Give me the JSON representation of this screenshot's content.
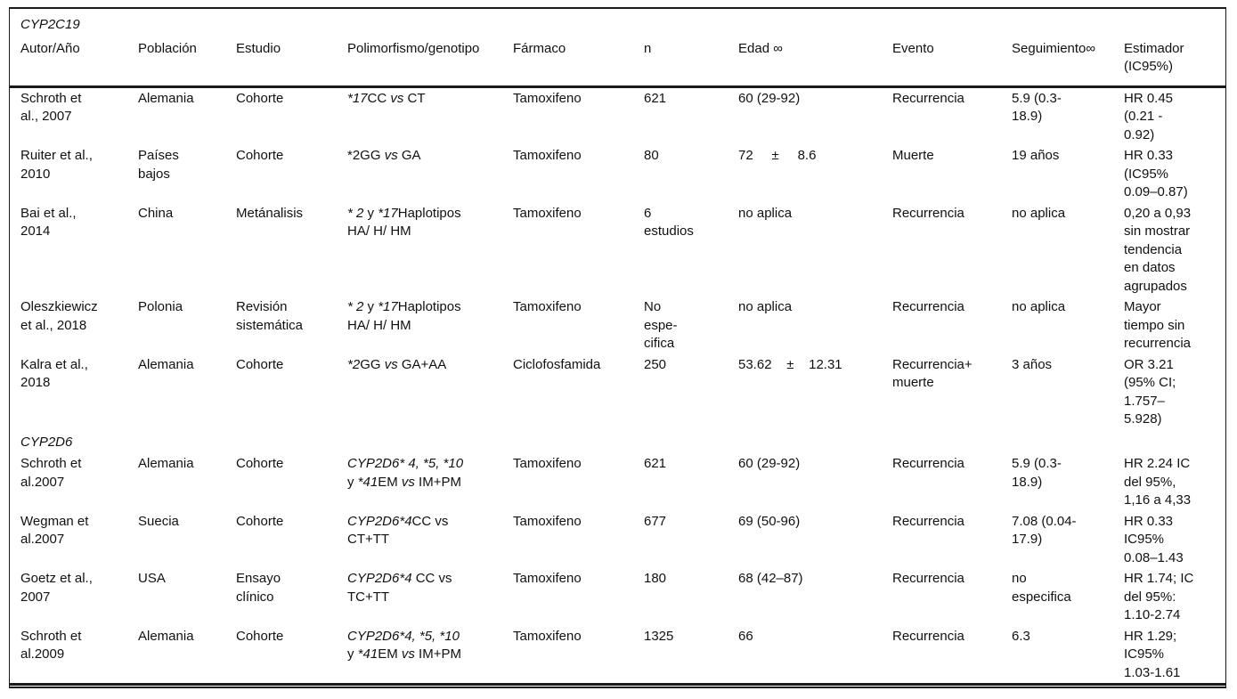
{
  "table": {
    "columns": [
      {
        "key": "autor",
        "label": "Autor/Año"
      },
      {
        "key": "poblacion",
        "label": "Población"
      },
      {
        "key": "estudio",
        "label": "Estudio"
      },
      {
        "key": "polimorfismo",
        "label": "Polimorfismo/genotipo"
      },
      {
        "key": "farmaco",
        "label": "Fármaco"
      },
      {
        "key": "n",
        "label": "n"
      },
      {
        "key": "edad",
        "label": "Edad ∞"
      },
      {
        "key": "evento",
        "label": "Evento"
      },
      {
        "key": "seguimiento",
        "label": "Seguimiento∞"
      },
      {
        "key": "estimador",
        "label": "Estimador\n(IC95%)"
      }
    ],
    "sections": [
      {
        "label": "CYP2C19",
        "rows": [
          {
            "autor": "Schroth et\nal., 2007",
            "poblacion": "Alemania",
            "estudio": "Cohorte",
            "polimorfismo": [
              {
                "t": "*17",
                "i": true
              },
              {
                "t": "CC "
              },
              {
                "t": "vs",
                "i": true
              },
              {
                "t": " CT"
              }
            ],
            "farmaco": "Tamoxifeno",
            "n": "621",
            "edad": "60 (29-92)",
            "evento": "Recurrencia",
            "seguimiento": "5.9 (0.3-\n18.9)",
            "estimador": "HR 0.45\n(0.21 -\n0.92)"
          },
          {
            "autor": "Ruiter et al.,\n2010",
            "poblacion": "Países\nbajos",
            "estudio": "Cohorte",
            "polimorfismo": [
              {
                "t": "*2GG "
              },
              {
                "t": "vs",
                "i": true
              },
              {
                "t": " GA"
              }
            ],
            "farmaco": "Tamoxifeno",
            "n": "80",
            "edad": "72     ±     8.6",
            "evento": "Muerte",
            "seguimiento": "19 años",
            "estimador": "HR 0.33\n(IC95%\n0.09–0.87)"
          },
          {
            "autor": "Bai et al.,\n2014",
            "poblacion": "China",
            "estudio": "Metánalisis",
            "polimorfismo": [
              {
                "t": "* 2",
                "i": true
              },
              {
                "t": " y "
              },
              {
                "t": "*17",
                "i": true
              },
              {
                "t": "Haplotipos\nHA/ H/ HM"
              }
            ],
            "farmaco": "Tamoxifeno",
            "n": "6\nestudios",
            "edad": "no aplica",
            "evento": "Recurrencia",
            "seguimiento": "no aplica",
            "estimador": "0,20 a 0,93\nsin mostrar\ntendencia\nen datos\nagrupados"
          },
          {
            "autor": "Oleszkiewicz\net al., 2018",
            "poblacion": "Polonia",
            "estudio": "Revisión\nsistemática",
            "polimorfismo": [
              {
                "t": "* 2",
                "i": true
              },
              {
                "t": " y "
              },
              {
                "t": "*17",
                "i": true
              },
              {
                "t": "Haplotipos\nHA/ H/ HM"
              }
            ],
            "farmaco": "Tamoxifeno",
            "n": "No\nespe-\ncifica",
            "edad": "no aplica",
            "evento": "Recurrencia",
            "seguimiento": "no aplica",
            "estimador": "Mayor\ntiempo sin\nrecurrencia"
          },
          {
            "autor": "Kalra et al.,\n2018",
            "poblacion": "Alemania",
            "estudio": "Cohorte",
            "polimorfismo": [
              {
                "t": "*2",
                "i": true
              },
              {
                "t": "GG "
              },
              {
                "t": "vs",
                "i": true
              },
              {
                "t": " GA+AA"
              }
            ],
            "farmaco": "Ciclofosfamida",
            "n": "250",
            "edad": "53.62    ±    12.31",
            "evento": "Recurrencia+\nmuerte",
            "seguimiento": "3 años",
            "estimador": "OR 3.21\n(95% CI;\n1.757–\n5.928)"
          }
        ]
      },
      {
        "label": "CYP2D6",
        "rows": [
          {
            "autor": "Schroth et\nal.2007",
            "poblacion": "Alemania",
            "estudio": "Cohorte",
            "polimorfismo": [
              {
                "t": "CYP2D6* 4, *5, *10",
                "i": true
              },
              {
                "t": "\ny "
              },
              {
                "t": "*41",
                "i": true
              },
              {
                "t": "EM "
              },
              {
                "t": "vs",
                "i": true
              },
              {
                "t": " IM+PM"
              }
            ],
            "farmaco": "Tamoxifeno",
            "n": "621",
            "edad": "60 (29-92)",
            "evento": "Recurrencia",
            "seguimiento": "5.9 (0.3-\n18.9)",
            "estimador": "HR 2.24 IC\ndel 95%,\n1,16 a 4,33"
          },
          {
            "autor": "Wegman et\nal.2007",
            "poblacion": "Suecia",
            "estudio": "Cohorte",
            "polimorfismo": [
              {
                "t": "CYP2D6*4",
                "i": true
              },
              {
                "t": "CC vs\nCT+TT"
              }
            ],
            "farmaco": "Tamoxifeno",
            "n": "677",
            "edad": "69 (50-96)",
            "evento": "Recurrencia",
            "seguimiento": "7.08 (0.04-\n17.9)",
            "estimador": "HR 0.33\nIC95%\n0.08–1.43"
          },
          {
            "autor": "Goetz et al.,\n2007",
            "poblacion": "USA",
            "estudio": "Ensayo\nclínico",
            "polimorfismo": [
              {
                "t": "CYP2D6*4",
                "i": true
              },
              {
                "t": " CC vs\nTC+TT"
              }
            ],
            "farmaco": "Tamoxifeno",
            "n": "180",
            "edad": "68 (42–87)",
            "evento": "Recurrencia",
            "seguimiento": "no\nespecifica",
            "estimador": "HR 1.74; IC\ndel 95%:\n1.10-2.74"
          },
          {
            "autor": "Schroth et\nal.2009",
            "poblacion": "Alemania",
            "estudio": "Cohorte",
            "polimorfismo": [
              {
                "t": "CYP2D6*4, *5, *10",
                "i": true
              },
              {
                "t": "\ny "
              },
              {
                "t": "*41",
                "i": true
              },
              {
                "t": "EM "
              },
              {
                "t": "vs",
                "i": true
              },
              {
                "t": " IM+PM"
              }
            ],
            "farmaco": "Tamoxifeno",
            "n": "1325",
            "edad": "66",
            "evento": "Recurrencia",
            "seguimiento": "6.3",
            "estimador": "HR 1.29;\nIC95%\n1.03-1.61"
          }
        ]
      }
    ]
  }
}
